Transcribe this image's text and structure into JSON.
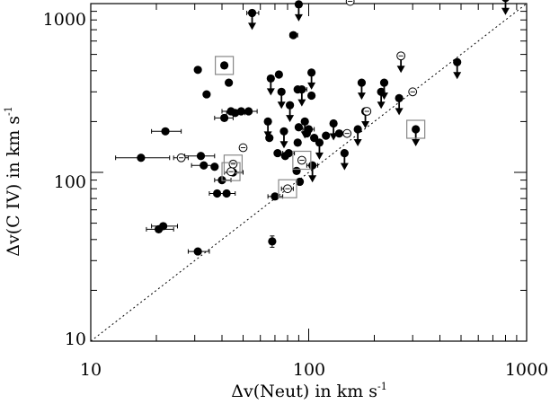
{
  "chart_data": {
    "type": "scatter",
    "xlabel": "Δv(Neut) in km s",
    "ylabel": "Δv(C IV) in km s",
    "unit_exponent": "-1",
    "x_scale": "log",
    "y_scale": "log",
    "xlim": [
      10,
      1000
    ],
    "ylim": [
      10,
      1000
    ],
    "x_ticks": [
      "10",
      "100",
      "1000"
    ],
    "y_ticks": [
      "10",
      "100",
      "1000"
    ],
    "grid": false,
    "reference_line": {
      "style": "dotted",
      "x": [
        10,
        1000
      ],
      "y": [
        10,
        1000
      ]
    },
    "series": [
      {
        "marker": "filled-circle",
        "points": [
          {
            "x": 17,
            "y": 122,
            "xerr": [
              13,
              23
            ]
          },
          {
            "x": 22,
            "y": 175,
            "xerr": [
              19,
              26
            ]
          },
          {
            "x": 20.5,
            "y": 46,
            "xerr": [
              18,
              24
            ]
          },
          {
            "x": 21.5,
            "y": 48,
            "xerr": [
              19,
              25
            ]
          },
          {
            "x": 31,
            "y": 34,
            "xerr": [
              28,
              35
            ]
          },
          {
            "x": 31,
            "y": 405
          },
          {
            "x": 34,
            "y": 290
          },
          {
            "x": 32,
            "y": 125,
            "xerr": [
              27,
              37
            ]
          },
          {
            "x": 33,
            "y": 110,
            "xerr": [
              29,
              37
            ]
          },
          {
            "x": 37,
            "y": 108
          },
          {
            "x": 38,
            "y": 75,
            "xerr": [
              35,
              42
            ]
          },
          {
            "x": 40,
            "y": 90,
            "xerr": [
              37,
              44
            ]
          },
          {
            "x": 41,
            "y": 430,
            "boxed": true
          },
          {
            "x": 41,
            "y": 210,
            "xerr": [
              37,
              45
            ]
          },
          {
            "x": 42,
            "y": 75,
            "xerr": [
              39,
              46
            ]
          },
          {
            "x": 43,
            "y": 340
          },
          {
            "x": 44,
            "y": 230,
            "xerr": [
              40,
              49
            ]
          },
          {
            "x": 46,
            "y": 225,
            "xerr": [
              42,
              51
            ]
          },
          {
            "x": 45,
            "y": 100,
            "xerr": [
              41,
              50
            ]
          },
          {
            "x": 49,
            "y": 230
          },
          {
            "x": 53,
            "y": 230,
            "xerr": [
              49,
              58
            ]
          },
          {
            "x": 55,
            "y": 880,
            "upper_limit": true,
            "xerr": [
              52,
              59
            ]
          },
          {
            "x": 65,
            "y": 200,
            "upper_limit": true
          },
          {
            "x": 66,
            "y": 160
          },
          {
            "x": 67,
            "y": 360,
            "upper_limit": true
          },
          {
            "x": 68,
            "y": 39,
            "yerr": [
              36,
              42
            ]
          },
          {
            "x": 70,
            "y": 72,
            "xerr": [
              65,
              76
            ]
          },
          {
            "x": 72,
            "y": 130
          },
          {
            "x": 73,
            "y": 380
          },
          {
            "x": 75,
            "y": 300,
            "upper_limit": true
          },
          {
            "x": 77,
            "y": 175,
            "upper_limit": true
          },
          {
            "x": 78,
            "y": 125
          },
          {
            "x": 81,
            "y": 130,
            "xerr": [
              76,
              86
            ]
          },
          {
            "x": 82,
            "y": 250,
            "upper_limit": true
          },
          {
            "x": 85,
            "y": 650,
            "xerr": [
              82,
              89
            ]
          },
          {
            "x": 90,
            "y": 990,
            "upper_limit": true
          },
          {
            "x": 89,
            "y": 310
          },
          {
            "x": 90,
            "y": 185
          },
          {
            "x": 89,
            "y": 150
          },
          {
            "x": 88,
            "y": 102
          },
          {
            "x": 91,
            "y": 88
          },
          {
            "x": 93,
            "y": 310,
            "upper_limit": true,
            "xerr": [
              88,
              98
            ]
          },
          {
            "x": 96,
            "y": 200,
            "upper_limit": true
          },
          {
            "x": 98,
            "y": 170
          },
          {
            "x": 100,
            "y": 180,
            "xerr": [
              94,
              106
            ]
          },
          {
            "x": 103,
            "y": 390,
            "upper_limit": true
          },
          {
            "x": 103,
            "y": 285
          },
          {
            "x": 104,
            "y": 110,
            "upper_limit": true,
            "xerr": [
              98,
              110
            ]
          },
          {
            "x": 106,
            "y": 160
          },
          {
            "x": 112,
            "y": 150,
            "upper_limit": true
          },
          {
            "x": 120,
            "y": 165
          },
          {
            "x": 130,
            "y": 195,
            "upper_limit": true
          },
          {
            "x": 138,
            "y": 170,
            "xerr": [
              130,
              146
            ]
          },
          {
            "x": 146,
            "y": 130,
            "upper_limit": true
          },
          {
            "x": 168,
            "y": 180,
            "upper_limit": true
          },
          {
            "x": 175,
            "y": 340,
            "upper_limit": true
          },
          {
            "x": 182,
            "y": 230,
            "upper_limit": true
          },
          {
            "x": 215,
            "y": 300,
            "upper_limit": true
          },
          {
            "x": 222,
            "y": 340,
            "upper_limit": true
          },
          {
            "x": 260,
            "y": 275,
            "upper_limit": true
          },
          {
            "x": 310,
            "y": 180,
            "upper_limit": true,
            "boxed": true
          },
          {
            "x": 480,
            "y": 450,
            "upper_limit": true
          },
          {
            "x": 800,
            "y": 1080,
            "upper_limit": true
          }
        ]
      },
      {
        "marker": "open-circle",
        "points": [
          {
            "x": 26,
            "y": 122,
            "xerr": [
              24,
              28
            ]
          },
          {
            "x": 45,
            "y": 112,
            "boxed": true
          },
          {
            "x": 44,
            "y": 101,
            "boxed": true
          },
          {
            "x": 50,
            "y": 140
          },
          {
            "x": 80,
            "y": 80,
            "boxed": true,
            "xerr": [
              75,
              85
            ]
          },
          {
            "x": 93,
            "y": 118,
            "boxed": true
          },
          {
            "x": 155,
            "y": 1030
          },
          {
            "x": 150,
            "y": 170
          },
          {
            "x": 185,
            "y": 230
          },
          {
            "x": 265,
            "y": 490,
            "upper_limit": true
          },
          {
            "x": 300,
            "y": 300
          }
        ]
      }
    ]
  }
}
